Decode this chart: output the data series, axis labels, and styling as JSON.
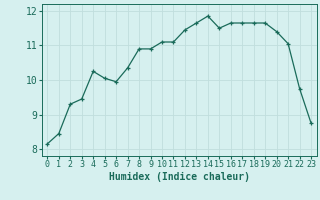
{
  "x": [
    0,
    1,
    2,
    3,
    4,
    5,
    6,
    7,
    8,
    9,
    10,
    11,
    12,
    13,
    14,
    15,
    16,
    17,
    18,
    19,
    20,
    21,
    22,
    23
  ],
  "y": [
    8.15,
    8.45,
    9.3,
    9.45,
    10.25,
    10.05,
    9.95,
    10.35,
    10.9,
    10.9,
    11.1,
    11.1,
    11.45,
    11.65,
    11.85,
    11.5,
    11.65,
    11.65,
    11.65,
    11.65,
    11.4,
    11.05,
    9.75,
    8.75
  ],
  "line_color": "#1a6b5a",
  "marker": "+",
  "marker_size": 3,
  "bg_color": "#d6f0ef",
  "grid_color": "#c0dedd",
  "xlabel": "Humidex (Indice chaleur)",
  "xlim": [
    -0.5,
    23.5
  ],
  "ylim": [
    7.8,
    12.2
  ],
  "yticks": [
    8,
    9,
    10,
    11,
    12
  ],
  "xticks": [
    0,
    1,
    2,
    3,
    4,
    5,
    6,
    7,
    8,
    9,
    10,
    11,
    12,
    13,
    14,
    15,
    16,
    17,
    18,
    19,
    20,
    21,
    22,
    23
  ],
  "tick_color": "#1a6b5a",
  "tick_fontsize": 6,
  "xlabel_fontsize": 7
}
